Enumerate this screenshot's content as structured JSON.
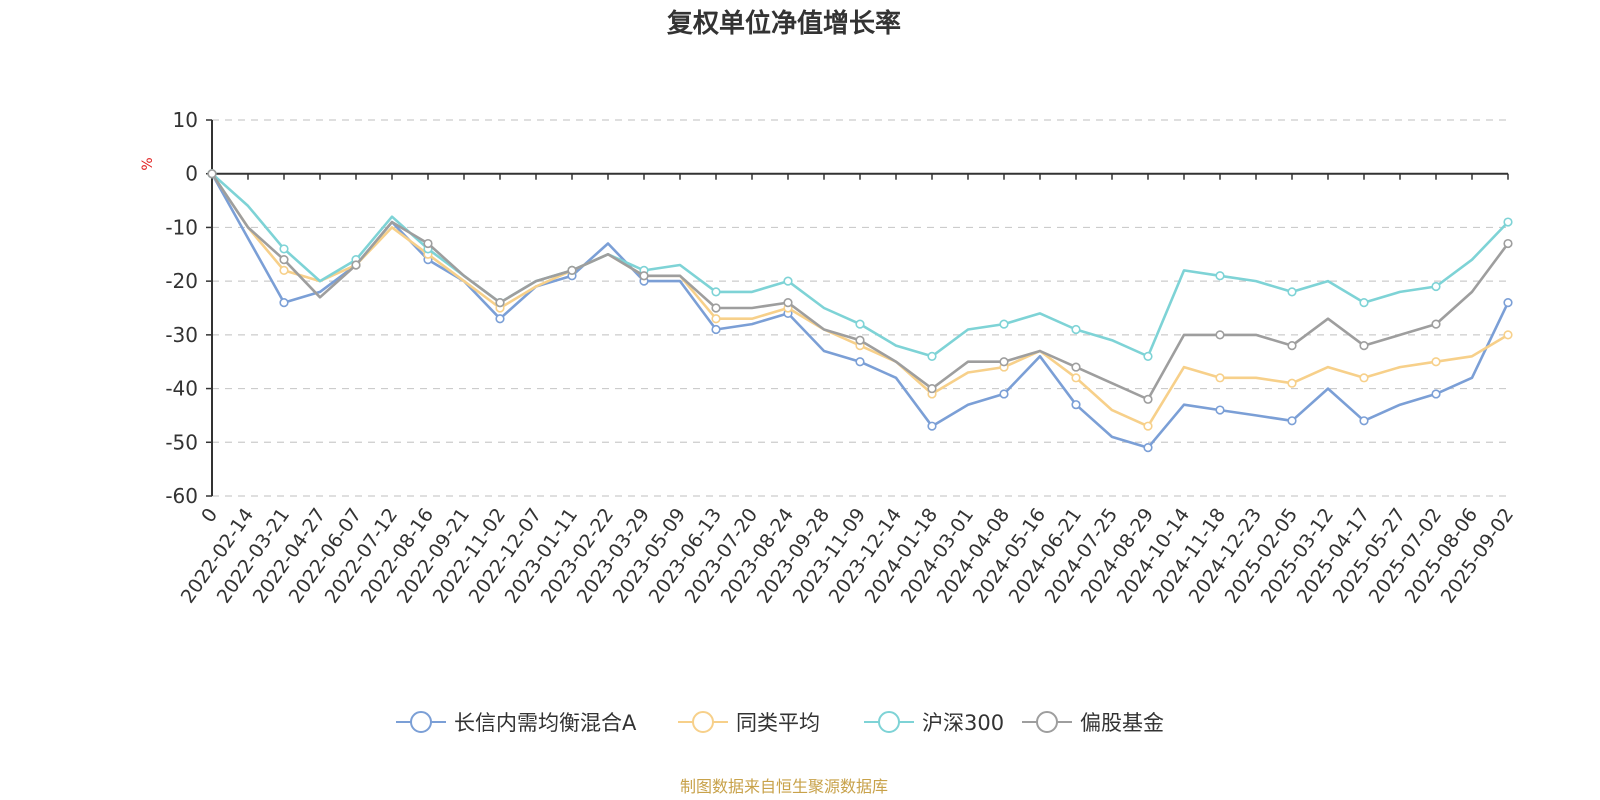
{
  "chart_data": {
    "type": "line",
    "title": "复权单位净值增长率",
    "y_unit": "%",
    "ylim": [
      -60,
      10
    ],
    "y_ticks": [
      10,
      0,
      -10,
      -20,
      -30,
      -40,
      -50,
      -60
    ],
    "grid": "dashed horizontal",
    "legend_position": "bottom",
    "x": [
      "0",
      "2022-02-14",
      "2022-03-21",
      "2022-04-27",
      "2022-06-07",
      "2022-07-12",
      "2022-08-16",
      "2022-09-21",
      "2022-11-02",
      "2022-12-07",
      "2023-01-11",
      "2023-02-22",
      "2023-03-29",
      "2023-05-09",
      "2023-06-13",
      "2023-07-20",
      "2023-08-24",
      "2023-09-28",
      "2023-11-09",
      "2023-12-14",
      "2024-01-18",
      "2024-03-01",
      "2024-04-08",
      "2024-05-16",
      "2024-06-21",
      "2024-07-25",
      "2024-08-29",
      "2024-10-14",
      "2024-11-18",
      "2024-12-23",
      "2025-02-05",
      "2025-03-12",
      "2025-04-17",
      "2025-05-27",
      "2025-07-02",
      "2025-08-06",
      "2025-09-02"
    ],
    "series": [
      {
        "name": "长信内需均衡混合A",
        "color": "#7b9fd6",
        "values": [
          0,
          -12,
          -24,
          -22,
          -17,
          -9,
          -16,
          -20,
          -27,
          -21,
          -19,
          -13,
          -20,
          -20,
          -29,
          -28,
          -26,
          -33,
          -35,
          -38,
          -47,
          -43,
          -41,
          -34,
          -43,
          -49,
          -51,
          -43,
          -44,
          -45,
          -46,
          -40,
          -46,
          -43,
          -41,
          -38,
          -24
        ]
      },
      {
        "name": "同类平均",
        "color": "#f7d08a",
        "values": [
          0,
          -10,
          -18,
          -20,
          -17,
          -10,
          -15,
          -20,
          -25,
          -21,
          -18,
          -15,
          -19,
          -19,
          -27,
          -27,
          -25,
          -29,
          -32,
          -35,
          -41,
          -37,
          -36,
          -33,
          -38,
          -44,
          -47,
          -36,
          -38,
          -38,
          -39,
          -36,
          -38,
          -36,
          -35,
          -34,
          -30
        ]
      },
      {
        "name": "沪深300",
        "color": "#7ed3d6",
        "values": [
          0,
          -6,
          -14,
          -20,
          -16,
          -8,
          -14,
          -19,
          -24,
          -20,
          -18,
          -15,
          -18,
          -17,
          -22,
          -22,
          -20,
          -25,
          -28,
          -32,
          -34,
          -29,
          -28,
          -26,
          -29,
          -31,
          -34,
          -18,
          -19,
          -20,
          -22,
          -20,
          -24,
          -22,
          -21,
          -16,
          -9
        ]
      },
      {
        "name": "偏股基金",
        "color": "#9e9e9e",
        "values": [
          0,
          -10,
          -16,
          -23,
          -17,
          -9,
          -13,
          -19,
          -24,
          -20,
          -18,
          -15,
          -19,
          -19,
          -25,
          -25,
          -24,
          -29,
          -31,
          -35,
          -40,
          -35,
          -35,
          -33,
          -36,
          -39,
          -42,
          -30,
          -30,
          -30,
          -32,
          -27,
          -32,
          -30,
          -28,
          -22,
          -13
        ]
      }
    ]
  },
  "source_note": "制图数据来自恒生聚源数据库"
}
